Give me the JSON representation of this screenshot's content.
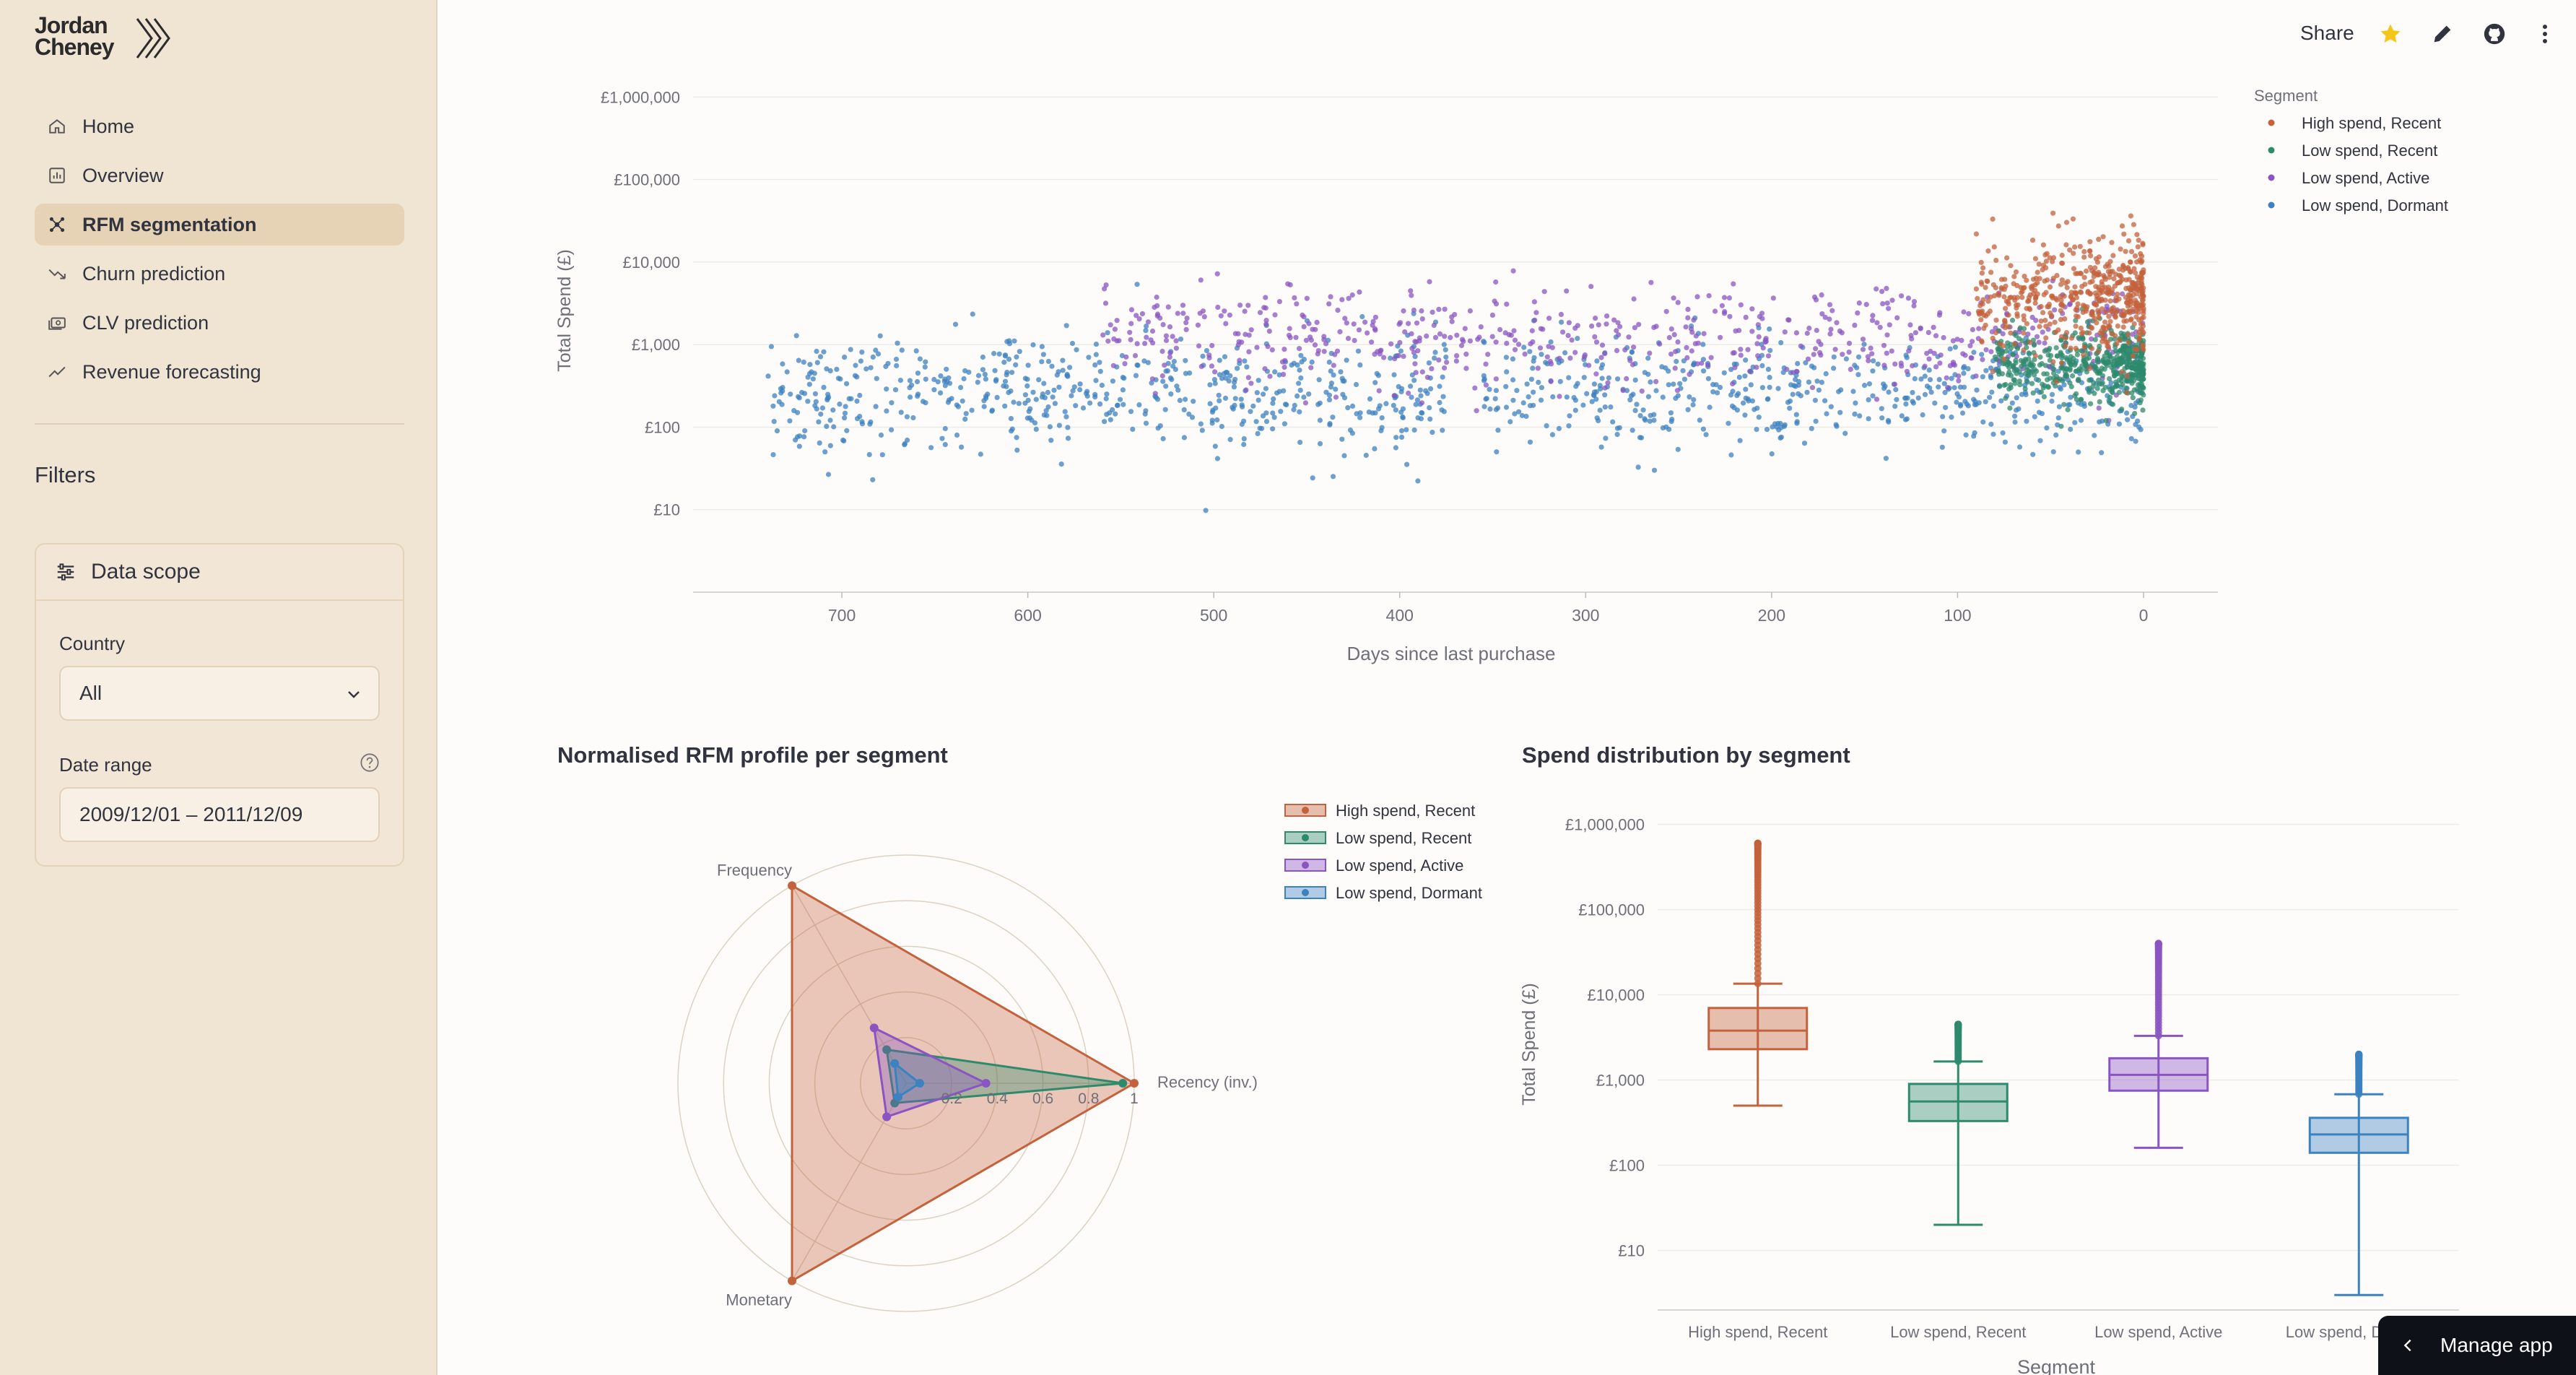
{
  "app": {
    "logo_line1": "Jordan",
    "logo_line2": "Cheney"
  },
  "nav": {
    "items": [
      {
        "label": "Home",
        "icon": "home-icon",
        "active": false
      },
      {
        "label": "Overview",
        "icon": "dashboard-icon",
        "active": false
      },
      {
        "label": "RFM segmentation",
        "icon": "nodes-icon",
        "active": true
      },
      {
        "label": "Churn prediction",
        "icon": "trend-down-icon",
        "active": false
      },
      {
        "label": "CLV prediction",
        "icon": "cash-icon",
        "active": false
      },
      {
        "label": "Revenue forecasting",
        "icon": "trend-up-icon",
        "active": false
      }
    ]
  },
  "filters": {
    "title": "Filters",
    "expander_title": "Data scope",
    "country_label": "Country",
    "country_value": "All",
    "date_label": "Date range",
    "date_value": "2009/12/01 – 2011/12/09"
  },
  "header": {
    "share_label": "Share"
  },
  "colors": {
    "high_recent": "#c3623c",
    "low_recent": "#2e8a6c",
    "low_active": "#8a55c2",
    "low_dormant": "#3c82c0",
    "sidebar_bg": "#f0e4d3"
  },
  "footer": {
    "manage_label": "Manage app"
  },
  "chart_data": [
    {
      "type": "scatter",
      "title": "",
      "xlabel": "Days since last purchase",
      "ylabel": "Total Spend (£)",
      "x_reversed": true,
      "xlim": [
        780,
        -40
      ],
      "ylog": true,
      "ylim": [
        1,
        2000000
      ],
      "x_ticks": [
        700,
        600,
        500,
        400,
        300,
        200,
        100,
        0
      ],
      "y_ticks": [
        {
          "value": 10,
          "label": "£10"
        },
        {
          "value": 100,
          "label": "£100"
        },
        {
          "value": 1000,
          "label": "£1,000"
        },
        {
          "value": 10000,
          "label": "£10,000"
        },
        {
          "value": 100000,
          "label": "£100,000"
        },
        {
          "value": 1000000,
          "label": "£1,000,000"
        }
      ],
      "legend_title": "Segment",
      "legend_position": "right",
      "series": [
        {
          "name": "High spend, Recent",
          "x_range": [
            0,
            90
          ],
          "y_median": 4000,
          "spread_log": 0.35
        },
        {
          "name": "Low spend, Recent",
          "x_range": [
            0,
            80
          ],
          "y_median": 550,
          "spread_log": 0.22
        },
        {
          "name": "Low spend, Active",
          "x_range": [
            0,
            560
          ],
          "y_median": 1200,
          "spread_log": 0.3
        },
        {
          "name": "Low spend, Dormant",
          "x_range": [
            0,
            740
          ],
          "y_median": 250,
          "spread_log": 0.35
        }
      ]
    },
    {
      "type": "radar",
      "title": "Normalised RFM profile per segment",
      "axes": [
        "Recency (inv.)",
        "Frequency",
        "Monetary"
      ],
      "radial_ticks": [
        0.2,
        0.4,
        0.6,
        0.8,
        1
      ],
      "radial_tick_labels": [
        "0.2",
        "0.4",
        "0.6",
        "0.8",
        "1"
      ],
      "legend_position": "top-right",
      "series": [
        {
          "name": "High spend, Recent",
          "values": [
            1.0,
            1.0,
            1.0
          ]
        },
        {
          "name": "Low spend, Recent",
          "values": [
            0.95,
            0.17,
            0.1
          ]
        },
        {
          "name": "Low spend, Active",
          "values": [
            0.35,
            0.28,
            0.17
          ]
        },
        {
          "name": "Low spend, Dormant",
          "values": [
            0.06,
            0.1,
            0.07
          ]
        }
      ]
    },
    {
      "type": "box",
      "title": "Spend distribution by segment",
      "xlabel": "Segment",
      "ylabel": "Total Spend (£)",
      "ylog": true,
      "ylim": [
        2,
        2000000
      ],
      "y_ticks": [
        {
          "value": 10,
          "label": "£10"
        },
        {
          "value": 100,
          "label": "£100"
        },
        {
          "value": 1000,
          "label": "£1,000"
        },
        {
          "value": 10000,
          "label": "£10,000"
        },
        {
          "value": 100000,
          "label": "£100,000"
        },
        {
          "value": 1000000,
          "label": "£1,000,000"
        }
      ],
      "categories": [
        "High spend, Recent",
        "Low spend, Recent",
        "Low spend, Active",
        "Low spend, Dormant"
      ],
      "boxes": [
        {
          "min": 500,
          "q1": 2300,
          "median": 3800,
          "q3": 7000,
          "max": 13500,
          "outlier_max": 600000
        },
        {
          "min": 20,
          "q1": 330,
          "median": 560,
          "q3": 900,
          "max": 1650,
          "outlier_max": 4500
        },
        {
          "min": 160,
          "q1": 750,
          "median": 1150,
          "q3": 1800,
          "max": 3300,
          "outlier_max": 40000
        },
        {
          "min": 3,
          "q1": 140,
          "median": 230,
          "q3": 360,
          "max": 680,
          "outlier_max": 2000
        }
      ]
    }
  ]
}
